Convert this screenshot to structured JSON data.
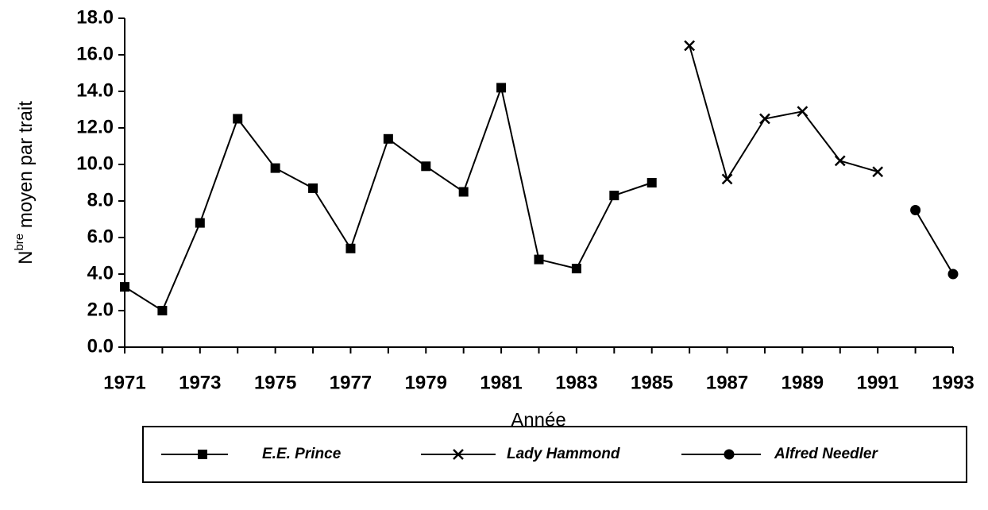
{
  "chart_data": {
    "type": "line",
    "ylabel": {
      "base": "N",
      "sup": "bre",
      "rest": " moyen par trait"
    },
    "xlabel": "Année",
    "x": [
      1971,
      1972,
      1973,
      1974,
      1975,
      1976,
      1977,
      1978,
      1979,
      1980,
      1981,
      1982,
      1983,
      1984,
      1985,
      1986,
      1987,
      1988,
      1989,
      1990,
      1991,
      1992,
      1993
    ],
    "xlim": [
      1971,
      1993
    ],
    "xticks": [
      1971,
      1973,
      1975,
      1977,
      1979,
      1981,
      1983,
      1985,
      1987,
      1989,
      1991,
      1993
    ],
    "ylim": [
      0,
      18
    ],
    "yticks": [
      {
        "value": 0,
        "label": "0.0"
      },
      {
        "value": 2,
        "label": "2.0"
      },
      {
        "value": 4,
        "label": "4.0"
      },
      {
        "value": 6,
        "label": "6.0"
      },
      {
        "value": 8,
        "label": "8.0"
      },
      {
        "value": 10,
        "label": "10.0"
      },
      {
        "value": 12,
        "label": "12.0"
      },
      {
        "value": 14,
        "label": "14.0"
      },
      {
        "value": 16,
        "label": "16.0"
      },
      {
        "value": 18,
        "label": "18.0"
      }
    ],
    "grid": false,
    "legend": "bottom",
    "series": [
      {
        "name": "E.E. Prince",
        "color": "#000000",
        "marker": "square",
        "values": [
          3.3,
          2.0,
          6.8,
          12.5,
          9.8,
          8.7,
          5.4,
          11.4,
          9.9,
          8.5,
          14.2,
          4.8,
          4.3,
          8.3,
          9.0,
          null,
          null,
          null,
          null,
          null,
          null,
          null,
          null
        ]
      },
      {
        "name": "Lady Hammond",
        "color": "#000000",
        "marker": "x",
        "values": [
          null,
          null,
          null,
          null,
          null,
          null,
          null,
          null,
          null,
          null,
          null,
          null,
          null,
          null,
          null,
          16.5,
          9.2,
          12.5,
          12.9,
          10.2,
          9.6,
          null,
          null
        ]
      },
      {
        "name": "Alfred Needler",
        "color": "#000000",
        "marker": "circle",
        "values": [
          null,
          null,
          null,
          null,
          null,
          null,
          null,
          null,
          null,
          null,
          null,
          null,
          null,
          null,
          null,
          null,
          null,
          null,
          null,
          null,
          null,
          7.5,
          4.0
        ]
      }
    ]
  }
}
